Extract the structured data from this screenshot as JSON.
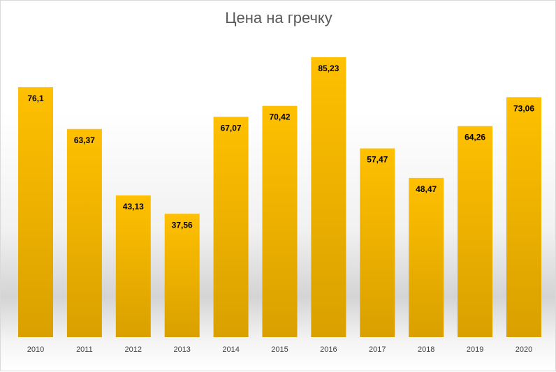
{
  "chart_data": {
    "type": "bar",
    "title": "Цена на гречку",
    "categories": [
      "2010",
      "2011",
      "2012",
      "2013",
      "2014",
      "2015",
      "2016",
      "2017",
      "2018",
      "2019",
      "2020"
    ],
    "values": [
      76.1,
      63.37,
      43.13,
      37.56,
      67.07,
      70.42,
      85.23,
      57.47,
      48.47,
      64.26,
      73.06
    ],
    "data_labels": [
      "76,1",
      "63,37",
      "43,13",
      "37,56",
      "67,07",
      "70,42",
      "85,23",
      "57,47",
      "48,47",
      "64,26",
      "73,06"
    ],
    "xlabel": "",
    "ylabel": "",
    "ylim": [
      0,
      100
    ],
    "grid": false,
    "legend": "none",
    "bar_color_top": "#FFC000",
    "bar_color_bottom": "#D9A000",
    "label_color": "#000000",
    "title_color": "#595959",
    "tick_color": "#404040"
  }
}
